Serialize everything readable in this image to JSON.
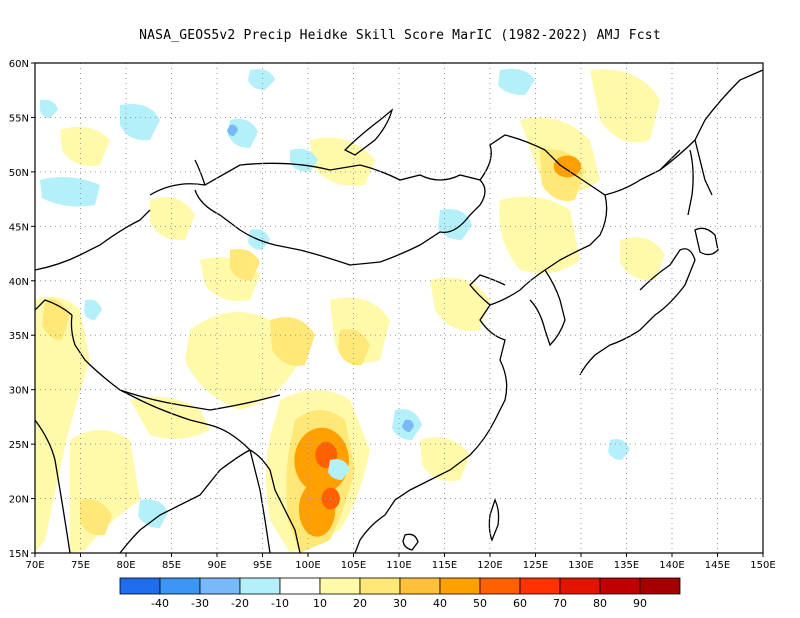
{
  "title": "NASA_GEOS5v2 Precip Heidke Skill Score MarIC (1982-2022) AMJ Fcst",
  "map": {
    "lon_range": [
      70,
      150
    ],
    "lat_range": [
      15,
      60
    ],
    "lon_ticks": [
      70,
      75,
      80,
      85,
      90,
      95,
      100,
      105,
      110,
      115,
      120,
      125,
      130,
      135,
      140,
      145,
      150
    ],
    "lat_ticks": [
      15,
      20,
      25,
      30,
      35,
      40,
      45,
      50,
      55,
      60
    ],
    "lon_labels": [
      "70E",
      "75E",
      "80E",
      "85E",
      "90E",
      "95E",
      "100E",
      "105E",
      "110E",
      "115E",
      "120E",
      "125E",
      "130E",
      "135E",
      "140E",
      "145E",
      "150E"
    ],
    "lat_labels": [
      "15N",
      "20N",
      "25N",
      "30N",
      "35N",
      "40N",
      "45N",
      "50N",
      "55N",
      "60N"
    ],
    "grid": "dotted"
  },
  "colorbar": {
    "colors": [
      "#1e6eeb",
      "#3c96f5",
      "#78b9fa",
      "#b4f0fa",
      "#ffffff",
      "#fffaaa",
      "#ffe878",
      "#ffc03c",
      "#ffa000",
      "#ff6000",
      "#ff3200",
      "#e11400",
      "#c00000",
      "#a50000"
    ],
    "labels": [
      "-40",
      "-30",
      "-20",
      "-10",
      "10",
      "20",
      "30",
      "40",
      "50",
      "60",
      "70",
      "80",
      "90"
    ]
  },
  "skill_regions": [
    {
      "lon": 101.5,
      "lat": 23.5,
      "rx": 3.0,
      "ry": 3.0,
      "color": "#ffa000"
    },
    {
      "lon": 101.0,
      "lat": 19.0,
      "rx": 2.0,
      "ry": 2.5,
      "color": "#ffa000"
    },
    {
      "lon": 102.0,
      "lat": 24.0,
      "rx": 1.2,
      "ry": 1.2,
      "color": "#ff6000"
    },
    {
      "lon": 102.5,
      "lat": 20.0,
      "rx": 1.0,
      "ry": 1.0,
      "color": "#ff6000"
    },
    {
      "lon": 128.5,
      "lat": 50.5,
      "rx": 1.5,
      "ry": 1.0,
      "color": "#ffa000"
    }
  ]
}
